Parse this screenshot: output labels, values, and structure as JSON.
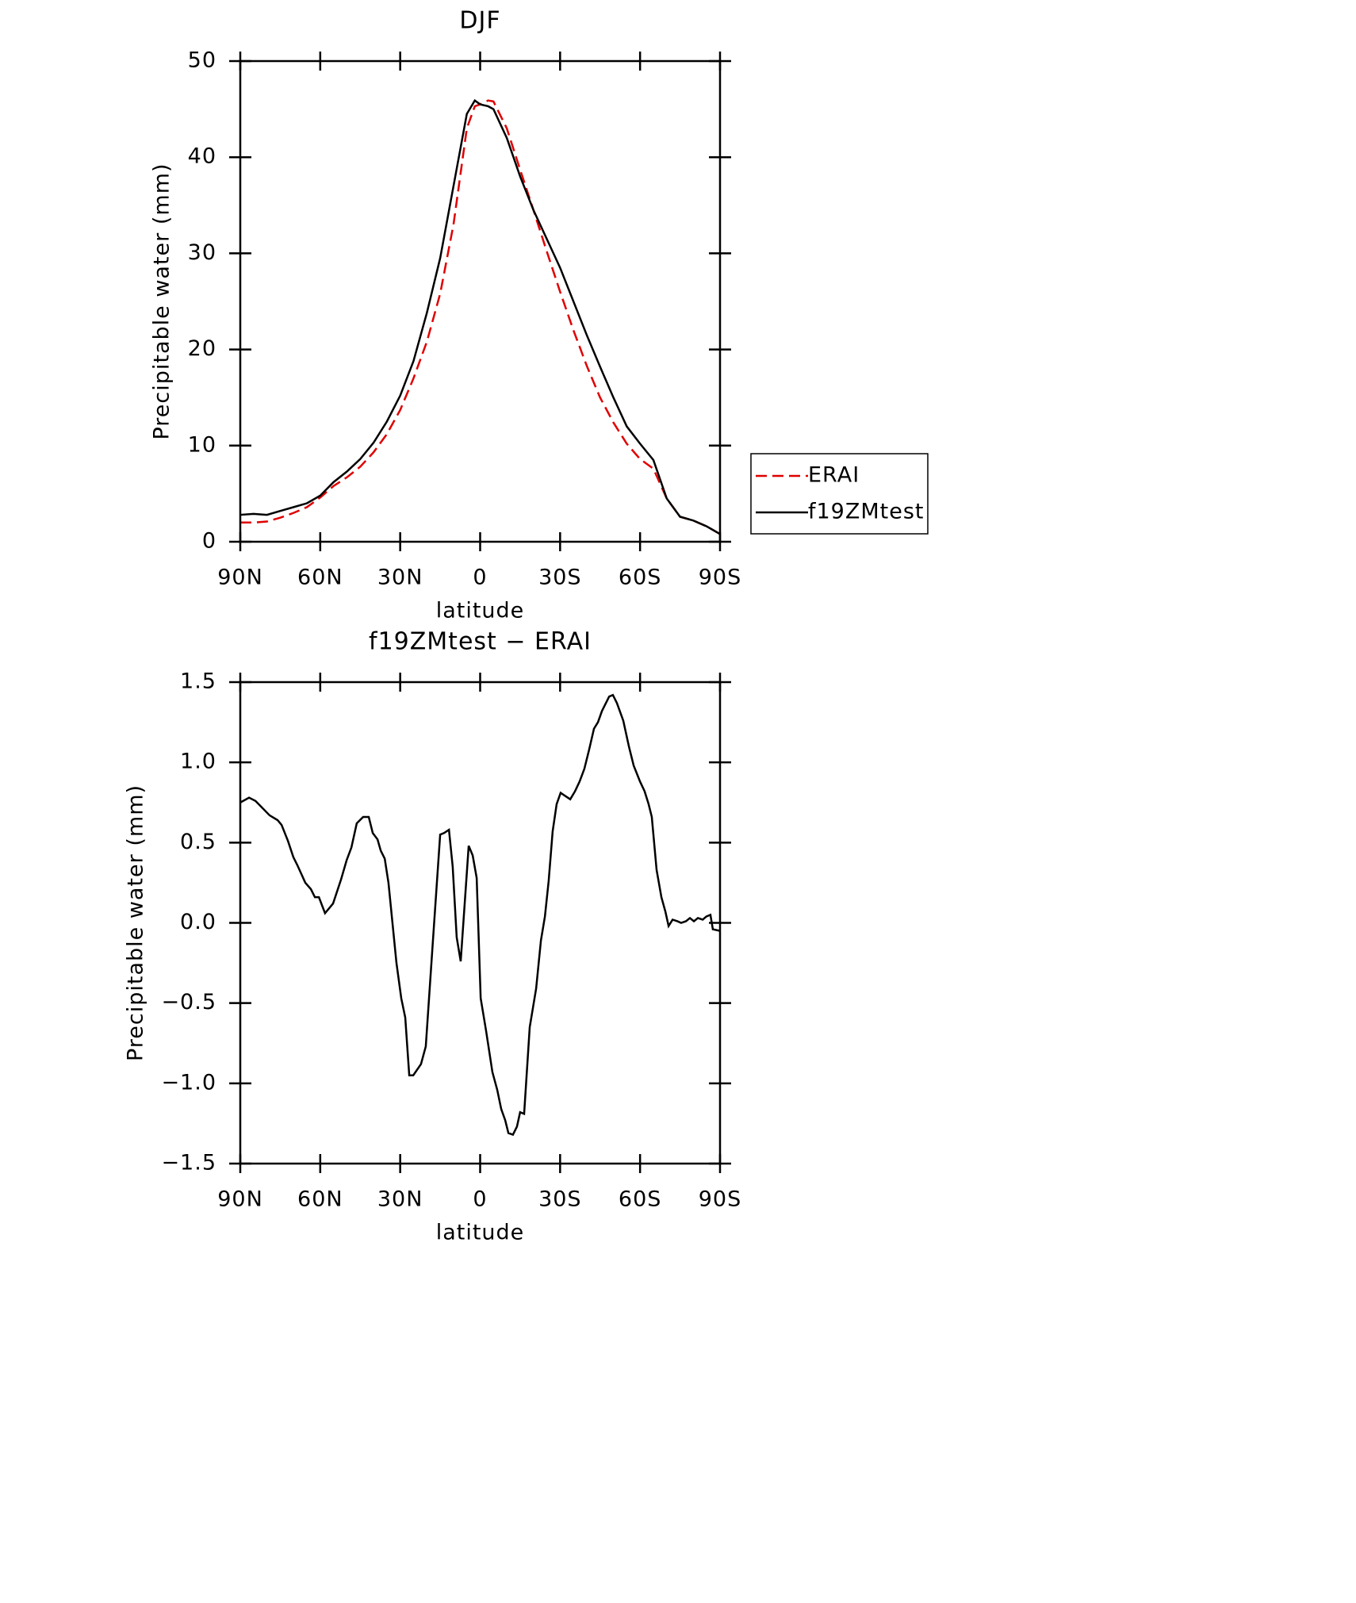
{
  "chart_data": [
    {
      "type": "line",
      "title": "DJF",
      "x_label": "latitude",
      "y_label": "Precipitable water (mm)",
      "xlim": [
        90,
        -90
      ],
      "xticks": [
        {
          "value": 90,
          "label": "90N"
        },
        {
          "value": 60,
          "label": "60N"
        },
        {
          "value": 30,
          "label": "30N"
        },
        0,
        {
          "value": -30,
          "label": "30S"
        },
        {
          "value": -60,
          "label": "60S"
        },
        {
          "value": -90,
          "label": "90S"
        }
      ],
      "ylim": [
        0,
        50
      ],
      "yticks": [
        0,
        10,
        20,
        30,
        40,
        50
      ],
      "legend": "right",
      "x": [
        90,
        85,
        80,
        75,
        70,
        65,
        60,
        55,
        50,
        45,
        40,
        35,
        30,
        25,
        20,
        15,
        10,
        5,
        2,
        0,
        -3,
        -5,
        -10,
        -15,
        -20,
        -25,
        -30,
        -35,
        -40,
        -45,
        -50,
        -55,
        -60,
        -65,
        -70,
        -75,
        -80,
        -85,
        -90
      ],
      "series": [
        {
          "name": "ERAI",
          "color": "#e00000",
          "linestyle": "dashed",
          "values": [
            2.0,
            2.0,
            2.1,
            2.5,
            3.0,
            3.6,
            4.6,
            5.8,
            6.7,
            7.8,
            9.3,
            11.2,
            13.7,
            17.0,
            20.8,
            25.8,
            33.0,
            43.0,
            45.3,
            45.5,
            45.9,
            45.8,
            43.0,
            38.7,
            34.5,
            30.2,
            26.0,
            22.0,
            18.3,
            15.0,
            12.4,
            10.2,
            8.6,
            7.6,
            4.5,
            2.6,
            2.2,
            1.6,
            0.8
          ]
        },
        {
          "name": "f19ZMtest",
          "color": "#000000",
          "linestyle": "solid",
          "values": [
            2.8,
            2.9,
            2.8,
            3.2,
            3.6,
            4.0,
            4.8,
            6.2,
            7.3,
            8.6,
            10.3,
            12.5,
            15.2,
            18.8,
            23.8,
            29.5,
            37.0,
            44.5,
            45.9,
            45.5,
            45.3,
            45.0,
            42.0,
            38.0,
            34.5,
            31.5,
            28.5,
            25.0,
            21.5,
            18.2,
            15.0,
            12.0,
            10.2,
            8.5,
            4.5,
            2.6,
            2.2,
            1.6,
            0.8
          ]
        }
      ]
    },
    {
      "type": "line",
      "title": "f19ZMtest − ERAI",
      "x_label": "latitude",
      "y_label": "Precipitable water (mm)",
      "xlim": [
        90,
        -90
      ],
      "xticks": [
        {
          "value": 90,
          "label": "90N"
        },
        {
          "value": 60,
          "label": "60N"
        },
        {
          "value": 30,
          "label": "30N"
        },
        0,
        {
          "value": -30,
          "label": "30S"
        },
        {
          "value": -60,
          "label": "60S"
        },
        {
          "value": -90,
          "label": "90S"
        }
      ],
      "ylim": [
        -1.5,
        1.5
      ],
      "yticks": [
        {
          "value": -1.5,
          "label": "−1.5"
        },
        {
          "value": -1,
          "label": "−1.0"
        },
        {
          "value": -0.5,
          "label": "−0.5"
        },
        {
          "value": 0,
          "label": "0.0"
        },
        0.5,
        {
          "value": 1,
          "label": "1.0"
        },
        1.5
      ],
      "x": [
        90,
        86.7,
        84.3,
        79,
        76,
        74.5,
        72.1,
        70.1,
        68.6,
        65.6,
        63.5,
        62,
        60.5,
        58.2,
        55.2,
        52.2,
        50.1,
        48.3,
        46.3,
        43.9,
        41.8,
        40.3,
        38.5,
        37.3,
        35.8,
        34.4,
        31.4,
        29.6,
        28.1,
        26.6,
        25.1,
        22.2,
        20.4,
        18,
        15,
        13.5,
        11.7,
        10.3,
        8.8,
        7.3,
        4.3,
        2.8,
        1.3,
        -0.2,
        -2.2,
        -4.6,
        -6.4,
        -7.9,
        -9.4,
        -10.6,
        -12.3,
        -13.8,
        -15,
        -16.5,
        -18.6,
        -21,
        -22.8,
        -24.3,
        -25.7,
        -27.2,
        -28.7,
        -30.2,
        -32,
        -33.8,
        -35.6,
        -37.3,
        -39.1,
        -40.9,
        -42.7,
        -44.2,
        -45.7,
        -47.5,
        -48.4,
        -49.8,
        -51.3,
        -53.7,
        -55.8,
        -57.6,
        -60,
        -61.7,
        -63.2,
        -64.4,
        -66.2,
        -68,
        -69.5,
        -70.7,
        -72.2,
        -74,
        -75.4,
        -77.2,
        -78.7,
        -80.2,
        -81.7,
        -83.5,
        -84.9,
        -86.4,
        -87.3,
        -90
      ],
      "series": [
        {
          "name": "f19ZMtest − ERAI",
          "color": "#000000",
          "linestyle": "solid",
          "values": [
            0.75,
            0.78,
            0.76,
            0.67,
            0.64,
            0.61,
            0.51,
            0.41,
            0.36,
            0.25,
            0.21,
            0.16,
            0.16,
            0.06,
            0.12,
            0.27,
            0.39,
            0.47,
            0.62,
            0.66,
            0.66,
            0.56,
            0.52,
            0.45,
            0.4,
            0.25,
            -0.25,
            -0.47,
            -0.59,
            -0.95,
            -0.95,
            -0.88,
            -0.77,
            -0.18,
            0.55,
            0.56,
            0.58,
            0.35,
            -0.09,
            -0.24,
            0.48,
            0.42,
            0.28,
            -0.47,
            -0.67,
            -0.93,
            -1.04,
            -1.16,
            -1.23,
            -1.31,
            -1.32,
            -1.27,
            -1.18,
            -1.19,
            -0.65,
            -0.41,
            -0.11,
            0.04,
            0.26,
            0.57,
            0.74,
            0.81,
            0.79,
            0.77,
            0.82,
            0.88,
            0.96,
            1.08,
            1.21,
            1.25,
            1.32,
            1.38,
            1.41,
            1.42,
            1.37,
            1.26,
            1.1,
            0.98,
            0.88,
            0.82,
            0.74,
            0.66,
            0.33,
            0.16,
            0.07,
            -0.02,
            0.02,
            0.01,
            0,
            0.01,
            0.03,
            0.01,
            0.03,
            0.02,
            0.04,
            0.05,
            -0.04,
            -0.05
          ]
        }
      ]
    }
  ]
}
